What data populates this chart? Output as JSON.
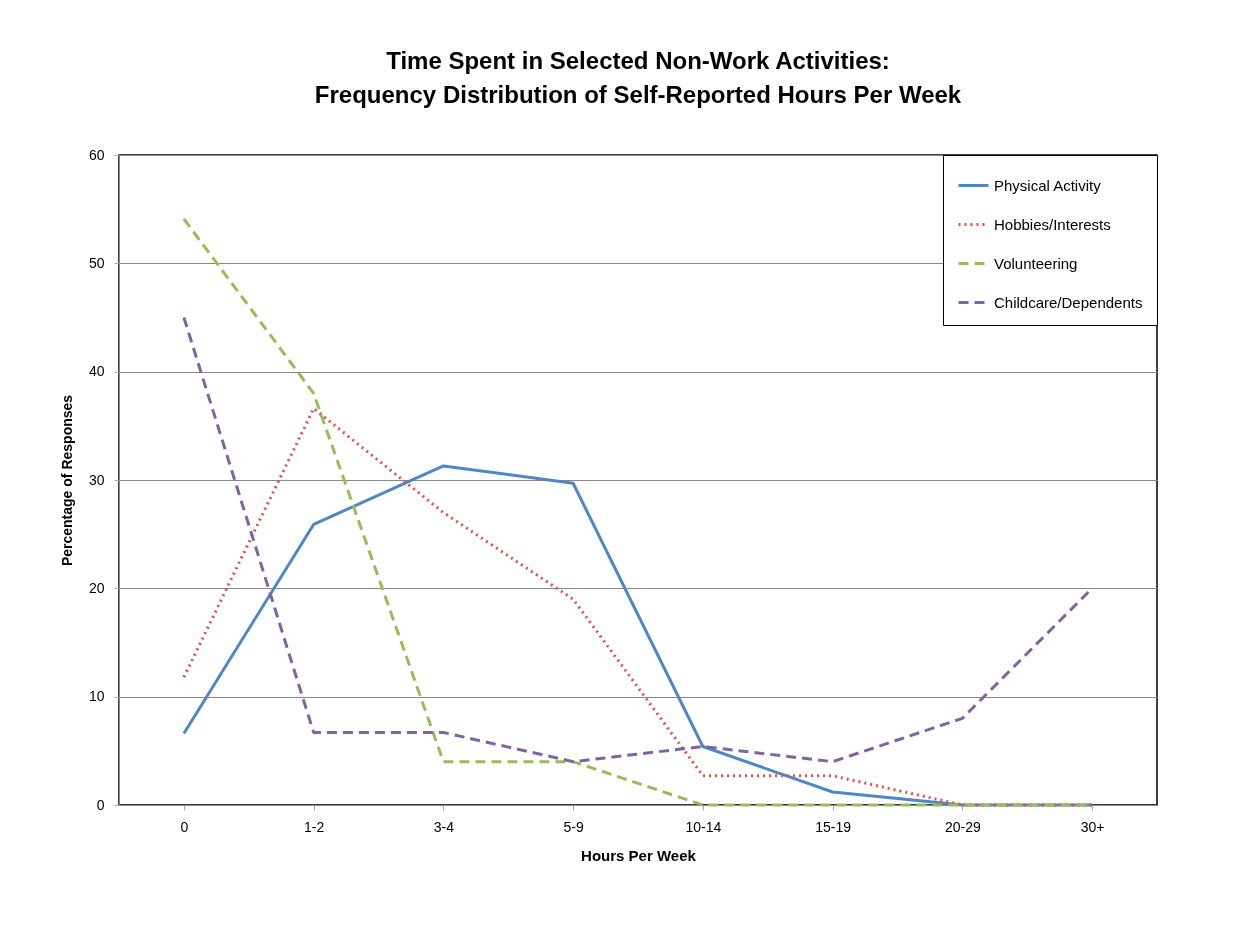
{
  "chart_data": {
    "type": "line",
    "title": "Time Spent in Selected Non-Work Activities:  Frequency Distribution of Self-Reported Hours Per Week",
    "xlabel": "Hours Per Week",
    "ylabel": "Percentage of Responses",
    "categories": [
      "0",
      "1-2",
      "3-4",
      "5-9",
      "10-14",
      "15-19",
      "20-29",
      "30+"
    ],
    "series": [
      {
        "name": "Physical Activity",
        "color": "#4f86c6",
        "line_style": "solid",
        "values": [
          6.6,
          25.9,
          31.3,
          29.7,
          5.4,
          1.2,
          0,
          0
        ]
      },
      {
        "name": "Hobbies/Interests",
        "color": "#e0504a",
        "line_style": "dotted",
        "values": [
          11.8,
          36.6,
          27,
          19,
          2.7,
          2.7,
          0,
          0
        ]
      },
      {
        "name": "Volunteering",
        "color": "#9bbb59",
        "line_style": "dashed",
        "values": [
          54.1,
          38,
          4,
          4,
          0,
          0,
          0,
          0
        ]
      },
      {
        "name": "Childcare/Dependents",
        "color": "#8064a2",
        "line_style": "dashed",
        "values": [
          45,
          6.7,
          6.7,
          4,
          5.4,
          4,
          8,
          20
        ]
      }
    ],
    "ylim": [
      0,
      60
    ],
    "yticks": [
      0,
      10,
      20,
      30,
      40,
      50,
      60
    ],
    "grid": "y",
    "legend": "top right",
    "marker": "none"
  }
}
